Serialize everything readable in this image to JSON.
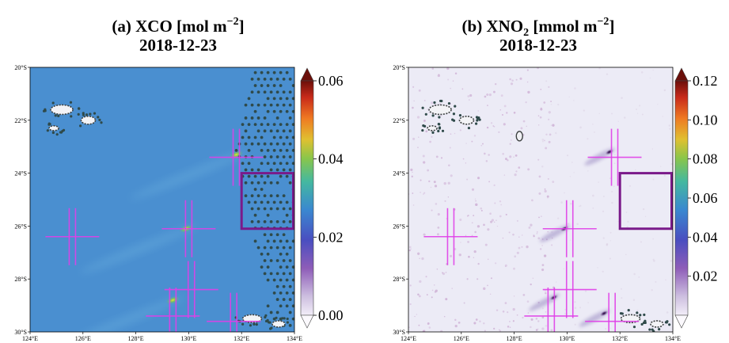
{
  "chart_data": [
    {
      "type": "heatmap",
      "panel": "a",
      "title_line1": "(a) XCO [mol m",
      "title_unit_sup": "−2",
      "title_close": "]",
      "title_line2": "2018-12-23",
      "x_ticks": [
        "124°E",
        "126°E",
        "128°E",
        "130°E",
        "132°E",
        "134°E"
      ],
      "y_ticks": [
        "20°S",
        "22°S",
        "24°S",
        "26°S",
        "28°S",
        "30°S"
      ],
      "xlim": [
        124,
        134
      ],
      "ylim": [
        -30,
        -20
      ],
      "colorbar": {
        "min": 0.0,
        "max": 0.06,
        "ticks": [
          "0.00",
          "0.02",
          "0.04",
          "0.06"
        ]
      },
      "background_color": "#4a8fd0",
      "crosses": [
        {
          "lon": 125.6,
          "lat": -26.4
        },
        {
          "lon": 130.0,
          "lat": -26.1
        },
        {
          "lon": 131.8,
          "lat": -23.4
        },
        {
          "lon": 130.1,
          "lat": -28.4
        },
        {
          "lon": 129.4,
          "lat": -29.4
        },
        {
          "lon": 131.7,
          "lat": -29.6
        }
      ],
      "box": {
        "lon_min": 132.0,
        "lon_max": 134.0,
        "lat_min": -26.1,
        "lat_max": -24.0
      },
      "plumes": [
        {
          "lon": 129.9,
          "lat": -26.1,
          "intensity": 0.06
        },
        {
          "lon": 131.8,
          "lat": -23.3,
          "intensity": 0.05
        },
        {
          "lon": 129.4,
          "lat": -28.8,
          "intensity": 0.05
        }
      ]
    },
    {
      "type": "heatmap",
      "panel": "b",
      "title_line1": "(b) XNO",
      "title_sub": "2",
      "title_mid": " [mmol m",
      "title_unit_sup": "−2",
      "title_close": "]",
      "title_line2": "2018-12-23",
      "x_ticks": [
        "124°E",
        "126°E",
        "128°E",
        "130°E",
        "132°E",
        "134°E"
      ],
      "y_ticks": [
        "20°S",
        "22°S",
        "24°S",
        "26°S",
        "28°S",
        "30°S"
      ],
      "xlim": [
        124,
        134
      ],
      "ylim": [
        -30,
        -20
      ],
      "colorbar": {
        "min": 0.0,
        "max": 0.12,
        "ticks": [
          "0.02",
          "0.04",
          "0.06",
          "0.08",
          "0.10",
          "0.12"
        ]
      },
      "background_color": "#ecebf6",
      "crosses": [
        {
          "lon": 125.6,
          "lat": -26.4
        },
        {
          "lon": 130.1,
          "lat": -26.1
        },
        {
          "lon": 131.8,
          "lat": -23.4
        },
        {
          "lon": 130.1,
          "lat": -28.4
        },
        {
          "lon": 129.4,
          "lat": -29.4
        },
        {
          "lon": 131.7,
          "lat": -29.6
        }
      ],
      "box": {
        "lon_min": 132.0,
        "lon_max": 134.0,
        "lat_min": -26.1,
        "lat_max": -24.0
      },
      "plumes": [
        {
          "lon": 129.9,
          "lat": -26.1,
          "intensity": 0.12
        },
        {
          "lon": 131.6,
          "lat": -23.2,
          "intensity": 0.09
        },
        {
          "lon": 129.5,
          "lat": -28.7,
          "intensity": 0.07
        },
        {
          "lon": 131.4,
          "lat": -29.3,
          "intensity": 0.05
        }
      ]
    }
  ]
}
